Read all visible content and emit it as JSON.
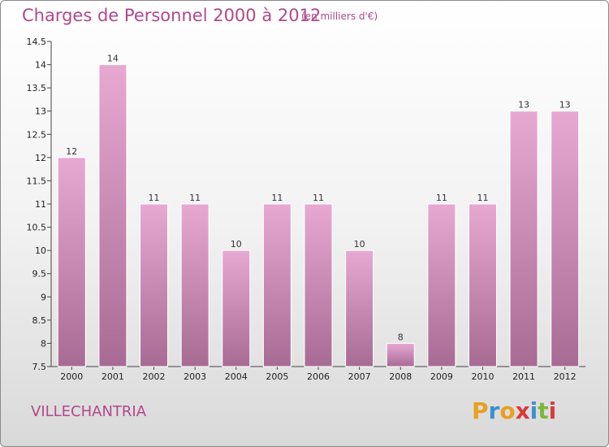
{
  "header": {
    "title": "Charges de Personnel 2000 à 2012",
    "unit": "(en milliers d'€)"
  },
  "footer": {
    "commune": "VILLECHANTRIA",
    "logo_letters": [
      "P",
      "r",
      "o",
      "x",
      "i",
      "t",
      "i"
    ]
  },
  "colors": {
    "title": "#b0488d",
    "bar_top": "#e7a9d2",
    "bar_bottom": "#a86b94",
    "logo": [
      "#e8a020",
      "#3a8fd0",
      "#e8a020",
      "#d93a3a",
      "#3a8fd0",
      "#7bb83a",
      "#d93a3a"
    ]
  },
  "chart_data": {
    "type": "bar",
    "title": "Charges de Personnel 2000 à 2012",
    "subtitle": "(en milliers d'€)",
    "categories": [
      "2000",
      "2001",
      "2002",
      "2003",
      "2004",
      "2005",
      "2006",
      "2007",
      "2008",
      "2009",
      "2010",
      "2011",
      "2012"
    ],
    "values": [
      12,
      14,
      11,
      11,
      10,
      11,
      11,
      10,
      8,
      11,
      11,
      13,
      13
    ],
    "value_labels": [
      "12",
      "14",
      "11",
      "11",
      "10",
      "11",
      "11",
      "10",
      "8",
      "11",
      "11",
      "13",
      "13"
    ],
    "ylim": [
      7.5,
      14.5
    ],
    "yticks": [
      7.5,
      8,
      8.5,
      9,
      9.5,
      10,
      10.5,
      11,
      11.5,
      12,
      12.5,
      13,
      13.5,
      14,
      14.5
    ],
    "ytick_labels": [
      "7.5",
      "8",
      "8.5",
      "9",
      "9.5",
      "10",
      "10.5",
      "11",
      "11.5",
      "12",
      "12.5",
      "13",
      "13.5",
      "14",
      "14.5"
    ],
    "grid": false,
    "legend": "none"
  }
}
